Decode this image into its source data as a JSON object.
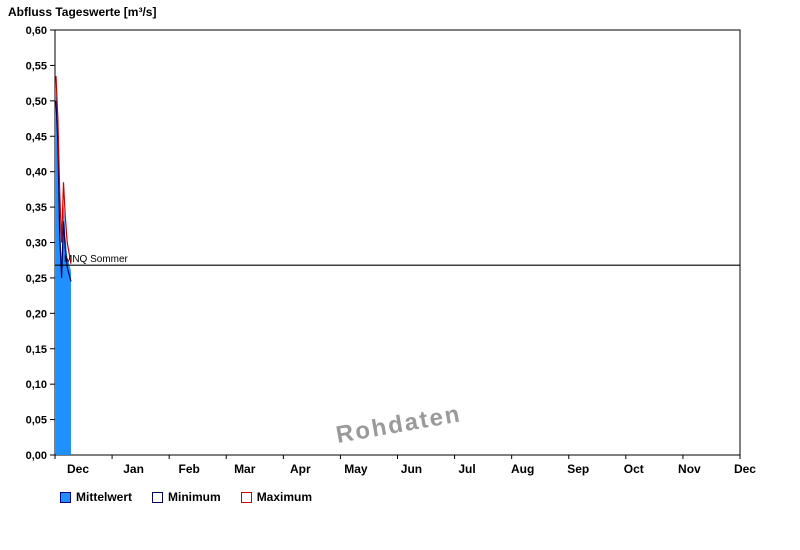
{
  "title": "Abfluss Tageswerte [m³/s]",
  "watermark": "Rohdaten",
  "reference_line": {
    "label": "MNQ Sommer",
    "value": 0.268
  },
  "legend": [
    {
      "label": "Mittelwert",
      "fill": "#1e90ff",
      "border": "#00008b"
    },
    {
      "label": "Minimum",
      "fill": "#ffffff",
      "border": "#000060"
    },
    {
      "label": "Maximum",
      "fill": "#ffffff",
      "border": "#cc0000"
    }
  ],
  "chart_data": {
    "type": "area",
    "title": "Abfluss Tageswerte [m³/s]",
    "xlabel": "",
    "ylabel": "m³/s",
    "ylim": [
      0,
      0.6
    ],
    "ytick_step": 0.05,
    "ytick_labels": [
      "0,00",
      "0,05",
      "0,10",
      "0,15",
      "0,20",
      "0,25",
      "0,30",
      "0,35",
      "0,40",
      "0,45",
      "0,50",
      "0,55",
      "0,60"
    ],
    "month_labels": [
      "Dec",
      "Jan",
      "Feb",
      "Mar",
      "Apr",
      "May",
      "Jun",
      "Jul",
      "Aug",
      "Sep",
      "Oct",
      "Nov",
      "Dec"
    ],
    "days_total": 366,
    "grid": false,
    "legend_position": "bottom-left",
    "note": "Data present only for first days of December; remainder of year empty",
    "days": [
      0,
      1,
      2,
      3,
      4,
      5,
      6,
      7,
      8
    ],
    "series": [
      {
        "name": "Mittelwert",
        "color": "#1e90ff",
        "style": "filled-area",
        "values": [
          0.52,
          0.46,
          0.34,
          0.27,
          0.36,
          0.31,
          0.28,
          0.27,
          0.26
        ]
      },
      {
        "name": "Minimum",
        "color": "#000060",
        "style": "line",
        "values": [
          0.5,
          0.44,
          0.31,
          0.25,
          0.33,
          0.29,
          0.265,
          0.255,
          0.245
        ]
      },
      {
        "name": "Maximum",
        "color": "#cc0000",
        "style": "line",
        "values": [
          0.535,
          0.475,
          0.37,
          0.3,
          0.385,
          0.335,
          0.3,
          0.285,
          0.27
        ]
      }
    ]
  }
}
